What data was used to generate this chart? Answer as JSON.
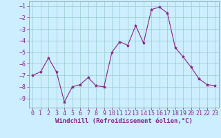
{
  "x": [
    0,
    1,
    2,
    3,
    4,
    5,
    6,
    7,
    8,
    9,
    10,
    11,
    12,
    13,
    14,
    15,
    16,
    17,
    18,
    19,
    20,
    21,
    22,
    23
  ],
  "y": [
    -7.0,
    -6.7,
    -5.5,
    -6.7,
    -9.3,
    -8.0,
    -7.8,
    -7.2,
    -7.9,
    -8.0,
    -5.0,
    -4.1,
    -4.4,
    -2.7,
    -4.2,
    -1.3,
    -1.1,
    -1.6,
    -4.6,
    -5.4,
    -6.3,
    -7.3,
    -7.8,
    -7.9
  ],
  "line_color": "#882288",
  "marker": "*",
  "marker_color": "#882288",
  "marker_size": 3,
  "bg_color": "#cceeff",
  "grid_color": "#99cccc",
  "xlabel": "Windchill (Refroidissement éolien,°C)",
  "xlabel_color": "#882288",
  "xlabel_fontsize": 6.5,
  "tick_color": "#882288",
  "tick_fontsize": 6,
  "ylim": [
    -9.8,
    -0.6
  ],
  "xlim": [
    -0.5,
    23.5
  ],
  "yticks": [
    -9,
    -8,
    -7,
    -6,
    -5,
    -4,
    -3,
    -2,
    -1
  ],
  "xticks": [
    0,
    1,
    2,
    3,
    4,
    5,
    6,
    7,
    8,
    9,
    10,
    11,
    12,
    13,
    14,
    15,
    16,
    17,
    18,
    19,
    20,
    21,
    22,
    23
  ]
}
